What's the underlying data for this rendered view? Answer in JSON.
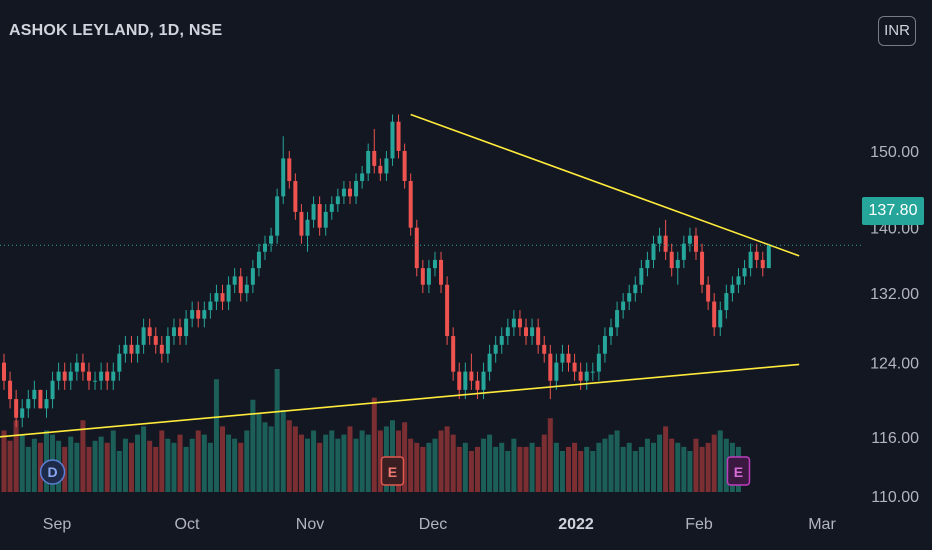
{
  "header": {
    "title": "ASHOK LEYLAND, 1D, NSE"
  },
  "currency_button": "INR",
  "last_price": "137.80",
  "colors": {
    "up": "#26a69a",
    "down": "#ef5350",
    "trendline": "#ffeb3b",
    "background": "#131722",
    "price_line": "#26a69a"
  },
  "chart_data": {
    "type": "candlestick",
    "symbol": "ASHOK LEYLAND",
    "interval": "1D",
    "exchange": "NSE",
    "y_ticks": [
      "150.00",
      "140.00",
      "132.00",
      "124.00",
      "116.00",
      "110.00"
    ],
    "y_tick_values": [
      150,
      140,
      132,
      124,
      116,
      110
    ],
    "x_ticks": [
      {
        "label": "Sep",
        "bold": false
      },
      {
        "label": "Oct",
        "bold": false
      },
      {
        "label": "Nov",
        "bold": false
      },
      {
        "label": "Dec",
        "bold": false
      },
      {
        "label": "2022",
        "bold": true
      },
      {
        "label": "Feb",
        "bold": false
      },
      {
        "label": "Mar",
        "bold": false
      }
    ],
    "ohlc": [
      [
        124,
        125,
        121,
        122
      ],
      [
        122,
        123,
        119,
        120
      ],
      [
        120,
        121,
        117,
        118
      ],
      [
        118,
        120,
        117,
        119
      ],
      [
        119,
        121,
        118,
        120
      ],
      [
        120,
        122,
        119,
        121
      ],
      [
        121,
        121,
        119,
        119
      ],
      [
        119,
        121,
        118,
        120
      ],
      [
        120,
        123,
        119,
        122
      ],
      [
        122,
        124,
        121,
        123
      ],
      [
        123,
        124,
        121,
        122
      ],
      [
        122,
        124,
        121,
        123
      ],
      [
        123,
        125,
        122,
        124
      ],
      [
        124,
        125,
        122,
        123
      ],
      [
        123,
        124,
        121,
        122
      ],
      [
        122,
        123,
        121,
        122
      ],
      [
        122,
        124,
        121,
        123
      ],
      [
        123,
        124,
        121,
        122
      ],
      [
        122,
        124,
        121,
        123
      ],
      [
        123,
        126,
        122,
        125
      ],
      [
        125,
        127,
        124,
        126
      ],
      [
        126,
        127,
        124,
        125
      ],
      [
        125,
        127,
        124,
        126
      ],
      [
        126,
        129,
        125,
        128
      ],
      [
        128,
        129,
        126,
        127
      ],
      [
        127,
        128,
        125,
        126
      ],
      [
        126,
        127,
        124,
        125
      ],
      [
        125,
        128,
        124,
        127
      ],
      [
        127,
        129,
        126,
        128
      ],
      [
        128,
        129,
        126,
        127
      ],
      [
        127,
        130,
        126,
        129
      ],
      [
        129,
        131,
        128,
        130
      ],
      [
        130,
        131,
        128,
        129
      ],
      [
        129,
        131,
        128,
        130
      ],
      [
        130,
        132,
        129,
        131
      ],
      [
        131,
        133,
        130,
        132
      ],
      [
        132,
        133,
        130,
        131
      ],
      [
        131,
        134,
        130,
        133
      ],
      [
        133,
        135,
        132,
        134
      ],
      [
        134,
        135,
        131,
        132
      ],
      [
        132,
        134,
        131,
        133
      ],
      [
        133,
        136,
        132,
        135
      ],
      [
        135,
        138,
        134,
        137
      ],
      [
        137,
        139,
        136,
        138
      ],
      [
        138,
        140,
        137,
        139
      ],
      [
        139,
        145,
        138,
        144
      ],
      [
        144,
        152,
        143,
        149
      ],
      [
        149,
        150,
        145,
        146
      ],
      [
        146,
        147,
        141,
        142
      ],
      [
        142,
        143,
        138,
        139
      ],
      [
        139,
        142,
        137,
        141
      ],
      [
        141,
        144,
        140,
        143
      ],
      [
        143,
        144,
        139,
        140
      ],
      [
        140,
        143,
        139,
        142
      ],
      [
        142,
        144,
        141,
        143
      ],
      [
        143,
        145,
        142,
        144
      ],
      [
        144,
        146,
        143,
        145
      ],
      [
        145,
        146,
        143,
        144
      ],
      [
        144,
        147,
        143,
        146
      ],
      [
        146,
        148,
        145,
        147
      ],
      [
        147,
        151,
        146,
        150
      ],
      [
        150,
        153,
        147,
        148
      ],
      [
        148,
        149,
        146,
        147
      ],
      [
        147,
        150,
        146,
        149
      ],
      [
        149,
        155,
        148,
        154
      ],
      [
        154,
        155,
        149,
        150
      ],
      [
        150,
        151,
        145,
        146
      ],
      [
        146,
        147,
        139,
        140
      ],
      [
        140,
        141,
        134,
        135
      ],
      [
        135,
        136,
        132,
        133
      ],
      [
        133,
        136,
        132,
        135
      ],
      [
        135,
        137,
        134,
        136
      ],
      [
        136,
        137,
        132,
        133
      ],
      [
        133,
        134,
        126,
        127
      ],
      [
        127,
        128,
        122,
        123
      ],
      [
        123,
        124,
        120,
        121
      ],
      [
        121,
        124,
        120,
        123
      ],
      [
        123,
        125,
        121,
        122
      ],
      [
        122,
        123,
        120,
        121
      ],
      [
        121,
        124,
        120,
        123
      ],
      [
        123,
        126,
        122,
        125
      ],
      [
        125,
        127,
        124,
        126
      ],
      [
        126,
        128,
        125,
        127
      ],
      [
        127,
        129,
        126,
        128
      ],
      [
        128,
        130,
        127,
        129
      ],
      [
        129,
        130,
        127,
        128
      ],
      [
        128,
        129,
        126,
        127
      ],
      [
        127,
        129,
        126,
        128
      ],
      [
        128,
        129,
        125,
        126
      ],
      [
        126,
        127,
        124,
        125
      ],
      [
        125,
        126,
        120,
        122
      ],
      [
        122,
        125,
        121,
        124
      ],
      [
        124,
        126,
        123,
        125
      ],
      [
        125,
        126,
        123,
        124
      ],
      [
        124,
        125,
        122,
        123
      ],
      [
        123,
        124,
        121,
        122
      ],
      [
        122,
        124,
        121,
        123
      ],
      [
        123,
        124,
        122,
        123
      ],
      [
        123,
        126,
        122,
        125
      ],
      [
        125,
        128,
        124,
        127
      ],
      [
        127,
        129,
        126,
        128
      ],
      [
        128,
        131,
        127,
        130
      ],
      [
        130,
        132,
        129,
        131
      ],
      [
        131,
        133,
        130,
        132
      ],
      [
        132,
        134,
        131,
        133
      ],
      [
        133,
        136,
        132,
        135
      ],
      [
        135,
        137,
        134,
        136
      ],
      [
        136,
        139,
        135,
        138
      ],
      [
        138,
        140,
        137,
        139
      ],
      [
        139,
        141,
        136,
        137
      ],
      [
        137,
        138,
        134,
        135
      ],
      [
        135,
        137,
        133,
        136
      ],
      [
        136,
        139,
        135,
        138
      ],
      [
        138,
        140,
        137,
        139
      ],
      [
        139,
        140,
        136,
        137
      ],
      [
        137,
        138,
        132,
        133
      ],
      [
        133,
        134,
        130,
        131
      ],
      [
        131,
        132,
        127,
        128
      ],
      [
        128,
        131,
        127,
        130
      ],
      [
        130,
        133,
        129,
        132
      ],
      [
        132,
        134,
        131,
        133
      ],
      [
        133,
        135,
        132,
        134
      ],
      [
        134,
        136,
        133,
        135
      ],
      [
        135,
        138,
        134,
        137
      ],
      [
        137,
        138,
        135,
        136
      ],
      [
        136,
        137,
        134,
        135
      ],
      [
        135,
        138,
        135,
        137.8
      ]
    ],
    "volume": [
      30,
      25,
      35,
      28,
      22,
      26,
      24,
      30,
      28,
      25,
      22,
      27,
      24,
      35,
      22,
      25,
      27,
      24,
      30,
      20,
      26,
      24,
      28,
      32,
      25,
      22,
      30,
      26,
      24,
      28,
      22,
      26,
      30,
      28,
      24,
      55,
      32,
      28,
      26,
      24,
      30,
      45,
      38,
      34,
      32,
      60,
      40,
      35,
      32,
      28,
      26,
      30,
      24,
      28,
      30,
      26,
      28,
      32,
      26,
      30,
      28,
      46,
      30,
      32,
      35,
      30,
      34,
      26,
      24,
      22,
      24,
      26,
      30,
      32,
      28,
      22,
      24,
      20,
      22,
      26,
      28,
      22,
      24,
      20,
      26,
      22,
      22,
      24,
      22,
      28,
      36,
      24,
      20,
      22,
      24,
      20,
      22,
      20,
      24,
      26,
      28,
      30,
      22,
      24,
      20,
      22,
      26,
      24,
      28,
      32,
      26,
      24,
      22,
      20,
      26,
      22,
      24,
      28,
      30,
      26,
      24,
      22
    ],
    "trendline_upper": {
      "from": [
        67,
        155
      ],
      "to": [
        131,
        136.5
      ]
    },
    "trendline_lower": {
      "from": [
        0,
        116
      ],
      "to": [
        131,
        123.8
      ]
    },
    "events": [
      {
        "label": "D",
        "at": 8
      },
      {
        "label": "E",
        "at": 64
      },
      {
        "label": "E",
        "at": 121
      }
    ]
  }
}
